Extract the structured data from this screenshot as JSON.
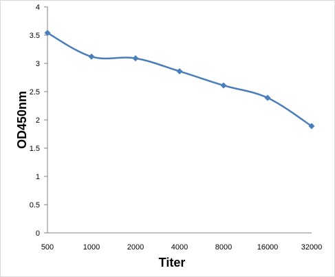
{
  "chart_data": {
    "type": "line",
    "xlabel": "Titer",
    "ylabel": "OD450nm",
    "categories": [
      "500",
      "1000",
      "2000",
      "4000",
      "8000",
      "16000",
      "32000"
    ],
    "y_ticks": [
      "0",
      "0.5",
      "1",
      "1.5",
      "2",
      "2.5",
      "3",
      "3.5",
      "4"
    ],
    "ylim": [
      0,
      4
    ],
    "grid": false,
    "legend": "none",
    "series": [
      {
        "values": [
          3.54,
          3.12,
          3.09,
          2.86,
          2.61,
          2.39,
          1.89
        ],
        "color": "#4a7ebb"
      }
    ]
  },
  "colors": {
    "axis": "#808080",
    "line": "#4a7ebb",
    "text": "#000000"
  }
}
